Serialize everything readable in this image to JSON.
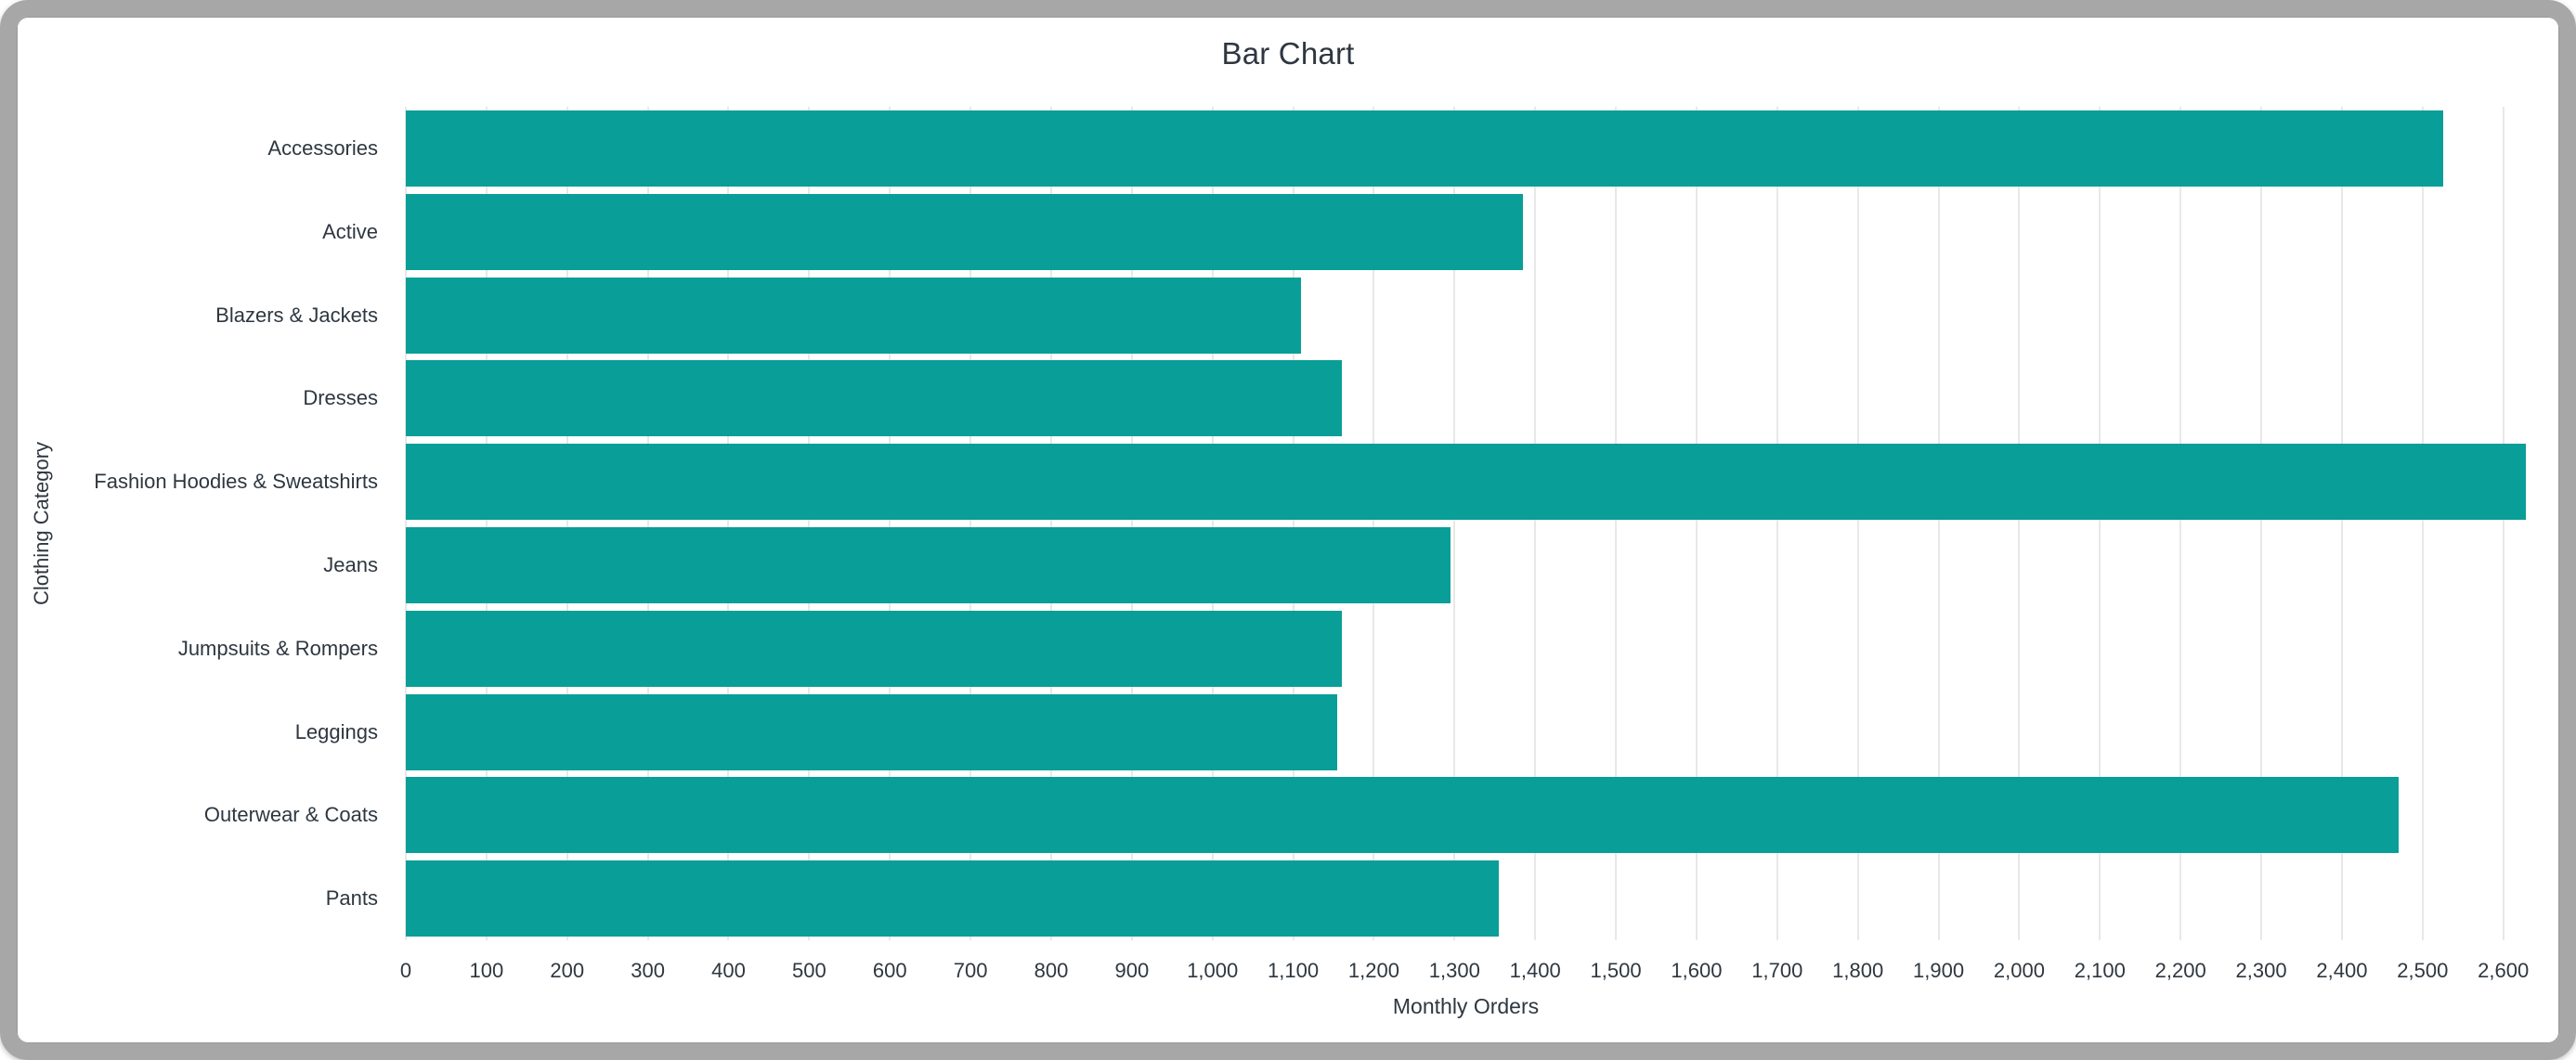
{
  "window": {
    "frame_color": "#a7a7a7",
    "card_color": "#ffffff"
  },
  "chart_data": {
    "type": "bar",
    "orientation": "horizontal",
    "title": "Bar Chart",
    "xlabel": "Monthly Orders",
    "ylabel": "Clothing Category",
    "categories": [
      "Accessories",
      "Active",
      "Blazers & Jackets",
      "Dresses",
      "Fashion Hoodies & Sweatshirts",
      "Jeans",
      "Jumpsuits & Rompers",
      "Leggings",
      "Outerwear & Coats",
      "Pants"
    ],
    "values": [
      2525,
      1385,
      1110,
      1160,
      2628,
      1295,
      1160,
      1155,
      2470,
      1355
    ],
    "xlim": [
      0,
      2628
    ],
    "xtick_start": 0,
    "xtick_step": 100,
    "xtick_end": 2600,
    "xtick_format": "thousands-comma",
    "grid": true,
    "legend": "none",
    "bar_color": "#0a9e98",
    "gridline_color": "#e8e8e8",
    "text_color": "#2e3740"
  }
}
